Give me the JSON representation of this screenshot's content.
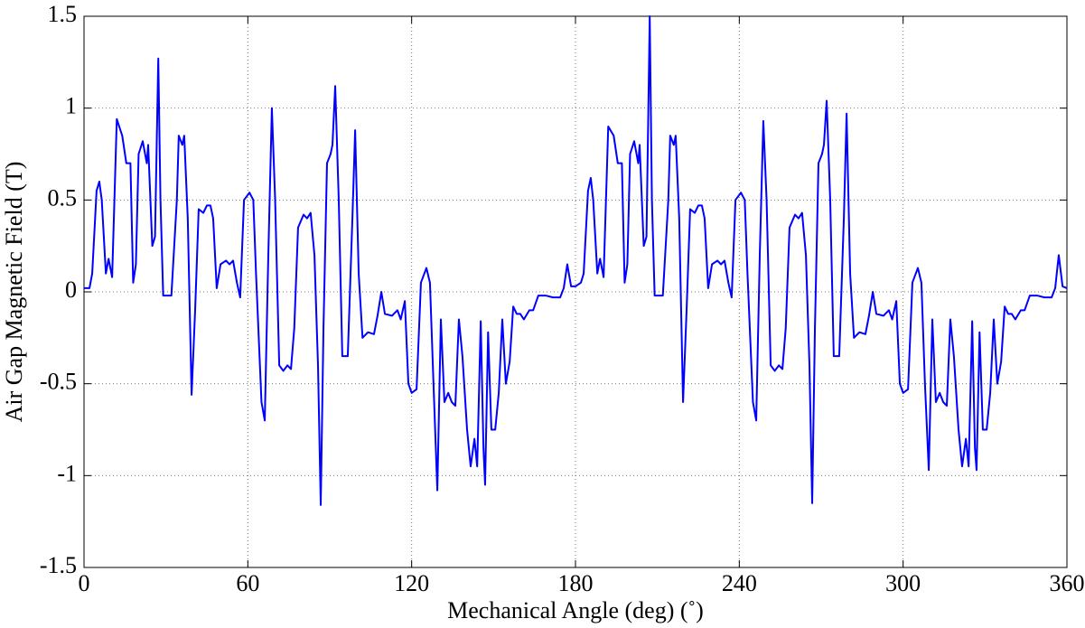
{
  "chart_data": {
    "type": "line",
    "xlabel": "Mechanical Angle (deg) (˚)",
    "ylabel": "Air Gap Magnetic Field (T)",
    "color": "#0000ff",
    "grid": true,
    "xlim": [
      0,
      360
    ],
    "xticks": [
      0,
      60,
      120,
      180,
      240,
      300,
      360
    ],
    "ylim": [
      -1.5,
      1.5
    ],
    "yticks": [
      -1.5,
      -1,
      -0.5,
      0,
      0.5,
      1,
      1.5
    ],
    "x": [
      0,
      2,
      3,
      4.6,
      5.6,
      6.5,
      8,
      9,
      10.3,
      12,
      14,
      15.5,
      17,
      18,
      19,
      20,
      21.5,
      23,
      23.5,
      25,
      26,
      27.2,
      28,
      29,
      32,
      34,
      34.7,
      36,
      36.7,
      38,
      39.4,
      40.7,
      42,
      43.7,
      45,
      46.3,
      47.3,
      48.6,
      50,
      52,
      53.3,
      54.6,
      56,
      57.2,
      58.6,
      60.6,
      62,
      63,
      65,
      66.2,
      67.5,
      68.8,
      70,
      71.5,
      73,
      74.5,
      75.8,
      77,
      78.4,
      80.4,
      81.7,
      83,
      84.4,
      85.7,
      86.7,
      87.7,
      89,
      90.3,
      91,
      92,
      93.3,
      94.6,
      96.6,
      98.3,
      99.3,
      100.6,
      102,
      104,
      106.2,
      107.5,
      108.9,
      110.2,
      112.8,
      114.8,
      116,
      117.5,
      118.8,
      120,
      121.8,
      123.4,
      125.4,
      126.7,
      128,
      129.4,
      130.7,
      132,
      133.4,
      134.7,
      136,
      137.3,
      138.6,
      140.3,
      141.6,
      143,
      144,
      145.3,
      146.3,
      146.9,
      148,
      149.2,
      150.6,
      151.9,
      153.2,
      154.5,
      155.9,
      157.2,
      158.5,
      159.8,
      161.1,
      163.1,
      164.5,
      166.4,
      169.1,
      171.7,
      174.4,
      175.7,
      177,
      178.4,
      180,
      182,
      183,
      184.6,
      185.6,
      186.5,
      188,
      189,
      190.3,
      192,
      194,
      195.5,
      197,
      198,
      199,
      200,
      201.5,
      203,
      203.5,
      205,
      206,
      207.2,
      208,
      209,
      212,
      214,
      214.7,
      216,
      216.7,
      218,
      219.4,
      220.7,
      222,
      223.7,
      225,
      226.3,
      227.3,
      228.6,
      230,
      232,
      233.3,
      234.6,
      236,
      237.2,
      238.6,
      240.6,
      242,
      243,
      245,
      246.2,
      247.5,
      248.8,
      250,
      251.5,
      253,
      254.5,
      255.8,
      257,
      258.4,
      260.4,
      261.7,
      263,
      264.4,
      265.7,
      266.7,
      267.7,
      269,
      270.3,
      271,
      272,
      273.3,
      274.6,
      276.6,
      278.3,
      279.3,
      280.6,
      282,
      284,
      286.2,
      287.5,
      288.9,
      290.2,
      292.8,
      294.8,
      296,
      297.5,
      298.8,
      300,
      301.8,
      303.4,
      305.4,
      306.7,
      308,
      309.4,
      310.7,
      312,
      313.4,
      314.7,
      316,
      317.3,
      318.6,
      320.3,
      321.6,
      323,
      324,
      325.3,
      326.3,
      326.9,
      328,
      329.2,
      330.6,
      331.9,
      333.2,
      334.5,
      335.9,
      337.2,
      338.5,
      339.8,
      341.1,
      343.1,
      344.5,
      346.4,
      349.1,
      351.7,
      354.4,
      355.7,
      357,
      358.4,
      360
    ],
    "values": [
      0.02,
      0.02,
      0.1,
      0.55,
      0.6,
      0.5,
      0.1,
      0.18,
      0.08,
      0.94,
      0.85,
      0.7,
      0.7,
      0.05,
      0.15,
      0.75,
      0.82,
      0.7,
      0.8,
      0.25,
      0.3,
      1.27,
      0.5,
      -0.02,
      -0.02,
      0.5,
      0.85,
      0.8,
      0.85,
      0.4,
      -0.56,
      -0.1,
      0.45,
      0.43,
      0.47,
      0.47,
      0.4,
      0.02,
      0.15,
      0.17,
      0.15,
      0.17,
      0.05,
      -0.03,
      0.5,
      0.54,
      0.5,
      0.1,
      -0.6,
      -0.7,
      0.2,
      1.0,
      0.5,
      -0.4,
      -0.43,
      -0.4,
      -0.42,
      -0.2,
      0.35,
      0.42,
      0.4,
      0.43,
      0.2,
      -0.4,
      -1.16,
      -0.2,
      0.7,
      0.75,
      0.8,
      1.12,
      0.5,
      -0.35,
      -0.35,
      0.4,
      0.88,
      0.1,
      -0.25,
      -0.22,
      -0.23,
      -0.13,
      0,
      -0.12,
      -0.13,
      -0.1,
      -0.15,
      -0.05,
      -0.5,
      -0.55,
      -0.53,
      0.05,
      0.13,
      0.05,
      -0.5,
      -1.08,
      -0.15,
      -0.6,
      -0.55,
      -0.6,
      -0.62,
      -0.15,
      -0.35,
      -0.75,
      -0.95,
      -0.8,
      -0.95,
      -0.16,
      -0.85,
      -1.05,
      -0.22,
      -0.75,
      -0.75,
      -0.55,
      -0.15,
      -0.5,
      -0.38,
      -0.08,
      -0.12,
      -0.12,
      -0.15,
      -0.1,
      -0.1,
      -0.02,
      -0.02,
      -0.03,
      -0.03,
      0.02,
      0.15,
      0.03,
      0.03,
      0.05,
      0.1,
      0.55,
      0.62,
      0.5,
      0.1,
      0.18,
      0.08,
      0.9,
      0.85,
      0.7,
      0.7,
      0.05,
      0.15,
      0.75,
      0.82,
      0.7,
      0.8,
      0.25,
      0.3,
      1.5,
      0.5,
      -0.02,
      -0.02,
      0.5,
      0.85,
      0.8,
      0.85,
      0.4,
      -0.6,
      -0.1,
      0.45,
      0.43,
      0.47,
      0.47,
      0.4,
      0.02,
      0.15,
      0.17,
      0.15,
      0.17,
      0.05,
      -0.03,
      0.5,
      0.54,
      0.5,
      0.1,
      -0.6,
      -0.7,
      0.2,
      0.93,
      0.5,
      -0.4,
      -0.43,
      -0.4,
      -0.42,
      -0.2,
      0.35,
      0.42,
      0.4,
      0.43,
      0.2,
      -0.4,
      -1.15,
      -0.2,
      0.7,
      0.75,
      0.8,
      1.04,
      0.5,
      -0.35,
      -0.35,
      0.4,
      0.97,
      0.1,
      -0.25,
      -0.22,
      -0.23,
      -0.13,
      0,
      -0.12,
      -0.13,
      -0.1,
      -0.15,
      -0.05,
      -0.5,
      -0.55,
      -0.53,
      0.05,
      0.13,
      0.05,
      -0.5,
      -0.97,
      -0.15,
      -0.6,
      -0.55,
      -0.6,
      -0.62,
      -0.15,
      -0.35,
      -0.75,
      -0.95,
      -0.8,
      -0.95,
      -0.16,
      -0.85,
      -0.97,
      -0.22,
      -0.75,
      -0.75,
      -0.55,
      -0.15,
      -0.5,
      -0.38,
      -0.08,
      -0.12,
      -0.12,
      -0.15,
      -0.1,
      -0.1,
      -0.02,
      -0.02,
      -0.03,
      -0.03,
      0.02,
      0.2,
      0.03,
      0.02
    ]
  }
}
